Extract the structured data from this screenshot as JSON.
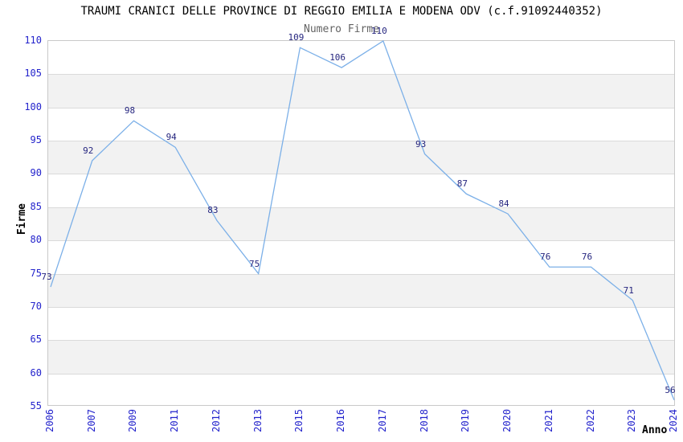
{
  "chart_data": {
    "type": "line",
    "title": "TRAUMI CRANICI DELLE PROVINCE DI REGGIO EMILIA E MODENA ODV (c.f.91092440352)",
    "subtitle": "Numero Firme",
    "xlabel": "Anno",
    "ylabel": "Firme",
    "categories": [
      "2006",
      "2007",
      "2009",
      "2011",
      "2012",
      "2013",
      "2015",
      "2016",
      "2017",
      "2018",
      "2019",
      "2020",
      "2021",
      "2022",
      "2023",
      "2024"
    ],
    "values": [
      73,
      92,
      98,
      94,
      83,
      75,
      109,
      106,
      110,
      93,
      87,
      84,
      76,
      76,
      71,
      56
    ],
    "ylim": [
      55,
      110
    ],
    "ytick_step": 5,
    "grid": true,
    "legend": "none",
    "band_pattern": "alternating horizontal stripes every 5 units, white at top band 105-110",
    "colors": {
      "line": "#7cb0e8",
      "axis_tick_label": "#2323cc",
      "data_label": "#26267f",
      "band": "#f2f2f2",
      "gridline": "#dadada",
      "border": "#c9c9c9",
      "title": "#000000",
      "subtitle": "#636363",
      "axis_title": "#000000"
    }
  }
}
